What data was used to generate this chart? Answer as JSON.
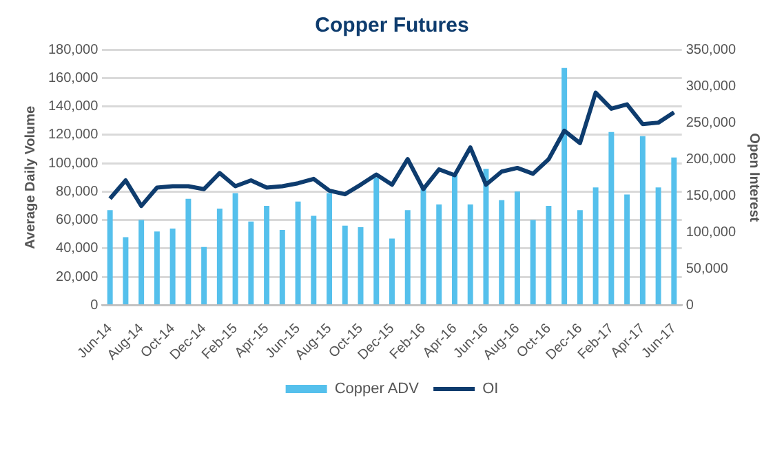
{
  "chart_data": {
    "type": "bar",
    "title": "Copper Futures",
    "ylabel": "Average Daily Volume",
    "y2label": "Open Interest",
    "categories": [
      "Jun-14",
      null,
      "Aug-14",
      null,
      "Oct-14",
      null,
      "Dec-14",
      null,
      "Feb-15",
      null,
      "Apr-15",
      null,
      "Jun-15",
      null,
      "Aug-15",
      null,
      "Oct-15",
      null,
      "Dec-15",
      null,
      "Feb-16",
      null,
      "Apr-16",
      null,
      "Jun-16",
      null,
      "Aug-16",
      null,
      "Oct-16",
      null,
      "Dec-16",
      null,
      "Feb-17",
      null,
      "Apr-17",
      null,
      "Jun-17"
    ],
    "series": [
      {
        "name": "Copper ADV",
        "color": "#55c0ec",
        "values": [
          67000,
          48000,
          60000,
          52000,
          54000,
          75000,
          41000,
          68000,
          79000,
          59000,
          70000,
          53000,
          73000,
          63000,
          79000,
          56000,
          55000,
          90000,
          47000,
          67000,
          82000,
          71000,
          92000,
          71000,
          96000,
          74000,
          80000,
          60000,
          70000,
          167000,
          67000,
          83000,
          122000,
          78000,
          119000,
          83000,
          104000
        ]
      },
      {
        "name": "OI",
        "type": "line",
        "axis": "y2",
        "color": "#0e3c6e",
        "values": [
          146000,
          171000,
          136000,
          161000,
          163000,
          163000,
          159000,
          181000,
          163000,
          171000,
          161000,
          163000,
          167000,
          173000,
          157000,
          152000,
          165000,
          179000,
          165000,
          200000,
          159000,
          186000,
          178000,
          216000,
          165000,
          183000,
          188000,
          180000,
          200000,
          239000,
          222000,
          291000,
          269000,
          275000,
          248000,
          250000,
          264000
        ]
      }
    ],
    "ylim": [
      0,
      180000
    ],
    "yticks": [
      0,
      {
        "value": 20000,
        "label": "20,000"
      },
      {
        "value": 40000,
        "label": "40,000"
      },
      {
        "value": 60000,
        "label": "60,000"
      },
      {
        "value": 80000,
        "label": "80,000"
      },
      {
        "value": 100000,
        "label": "100,000"
      },
      {
        "value": 120000,
        "label": "120,000"
      },
      {
        "value": 140000,
        "label": "140,000"
      },
      {
        "value": 160000,
        "label": "160,000"
      },
      {
        "value": 180000,
        "label": "180,000"
      }
    ],
    "y2lim": [
      0,
      350000
    ],
    "y2ticks": [
      0,
      {
        "value": 50000,
        "label": "50,000"
      },
      {
        "value": 100000,
        "label": "100,000"
      },
      {
        "value": 150000,
        "label": "150,000"
      },
      {
        "value": 200000,
        "label": "200,000"
      },
      {
        "value": 250000,
        "label": "250,000"
      },
      {
        "value": 300000,
        "label": "300,000"
      },
      {
        "value": 350000,
        "label": "350,000"
      }
    ],
    "grid": "y",
    "legend": "bottom",
    "marker": "none"
  }
}
